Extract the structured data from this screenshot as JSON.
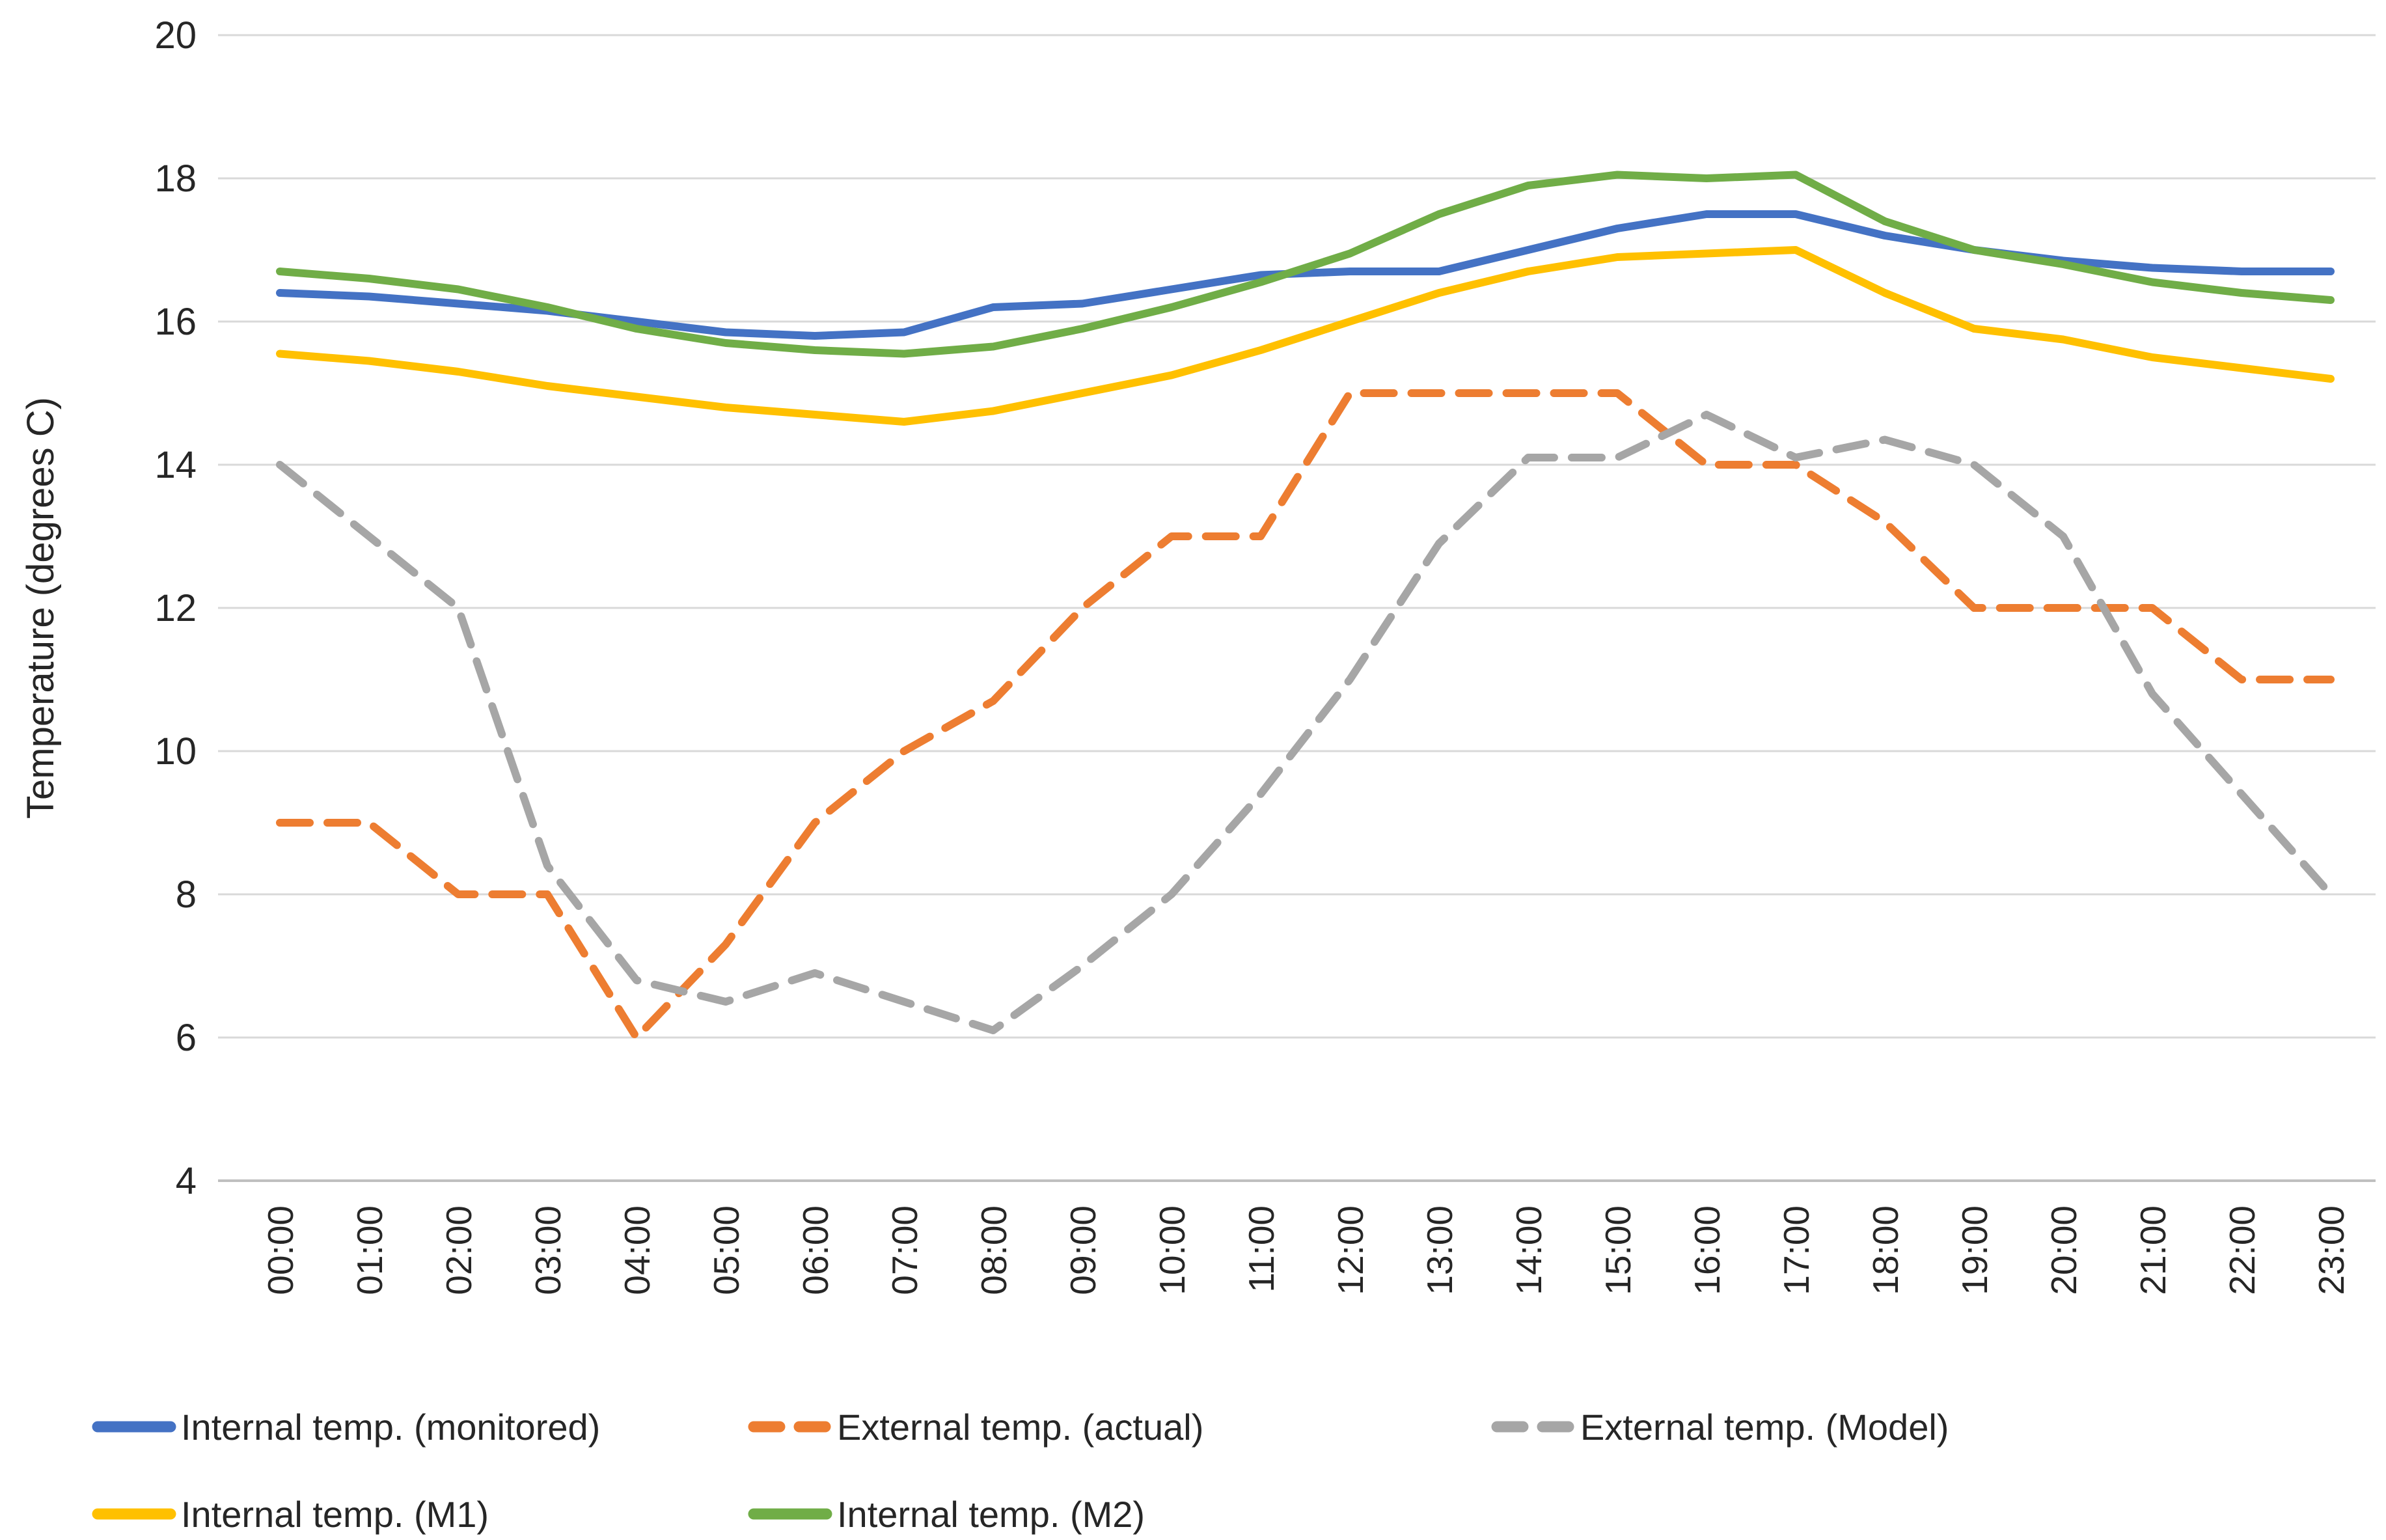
{
  "chart_data": {
    "type": "line",
    "title": "",
    "ylabel": "Temperature (degrees C)",
    "xlabel": "",
    "ylim": [
      4,
      20
    ],
    "ytick_step": 2,
    "yticks": [
      4,
      6,
      8,
      10,
      12,
      14,
      16,
      18,
      20
    ],
    "grid": true,
    "legend_position": "bottom",
    "categories": [
      "00:00",
      "01:00",
      "02:00",
      "03:00",
      "04:00",
      "05:00",
      "06:00",
      "07:00",
      "08:00",
      "09:00",
      "10:00",
      "11:00",
      "12:00",
      "13:00",
      "14:00",
      "15:00",
      "16:00",
      "17:00",
      "18:00",
      "19:00",
      "20:00",
      "21:00",
      "22:00",
      "23:00"
    ],
    "series": [
      {
        "name": "Internal temp. (monitored)",
        "color": "#4472C4",
        "style": "solid",
        "values": [
          16.4,
          16.35,
          16.25,
          16.15,
          16.0,
          15.85,
          15.8,
          15.85,
          16.2,
          16.25,
          16.45,
          16.65,
          16.7,
          16.7,
          17.0,
          17.3,
          17.5,
          17.5,
          17.2,
          17.0,
          16.85,
          16.75,
          16.7,
          16.7
        ]
      },
      {
        "name": "External temp. (actual)",
        "color": "#ED7D31",
        "style": "dashed",
        "values": [
          9,
          9,
          8,
          8,
          6,
          7.3,
          9,
          10,
          10.7,
          12,
          13,
          13,
          15,
          15,
          15,
          15,
          14,
          14,
          13.2,
          12,
          12,
          12,
          11,
          11
        ]
      },
      {
        "name": "External temp. (Model)",
        "color": "#A6A6A6",
        "style": "dashed",
        "values": [
          14,
          13,
          12,
          8.4,
          6.8,
          6.5,
          6.9,
          6.5,
          6.1,
          7.0,
          8.0,
          9.4,
          11.0,
          12.9,
          14.1,
          14.1,
          14.7,
          14.1,
          14.35,
          14.0,
          13.0,
          10.8,
          9.4,
          8.0
        ]
      },
      {
        "name": "Internal temp. (M1)",
        "color": "#FFC000",
        "style": "solid",
        "values": [
          15.55,
          15.45,
          15.3,
          15.1,
          14.95,
          14.8,
          14.7,
          14.6,
          14.75,
          15.0,
          15.25,
          15.6,
          16.0,
          16.4,
          16.7,
          16.9,
          16.95,
          17.0,
          16.4,
          15.9,
          15.75,
          15.5,
          15.35,
          15.2
        ]
      },
      {
        "name": "Internal temp. (M2)",
        "color": "#70AD47",
        "style": "solid",
        "values": [
          16.7,
          16.6,
          16.45,
          16.2,
          15.9,
          15.7,
          15.6,
          15.55,
          15.65,
          15.9,
          16.2,
          16.55,
          16.95,
          17.5,
          17.9,
          18.05,
          18.0,
          18.05,
          17.4,
          17.0,
          16.8,
          16.55,
          16.4,
          16.3
        ]
      }
    ],
    "legend_rows": [
      [
        0,
        1,
        2
      ],
      [
        3,
        4
      ]
    ],
    "colors": {
      "gridline": "#D9D9D9",
      "axis_line": "#BFBFBF",
      "text": "#262626"
    }
  }
}
